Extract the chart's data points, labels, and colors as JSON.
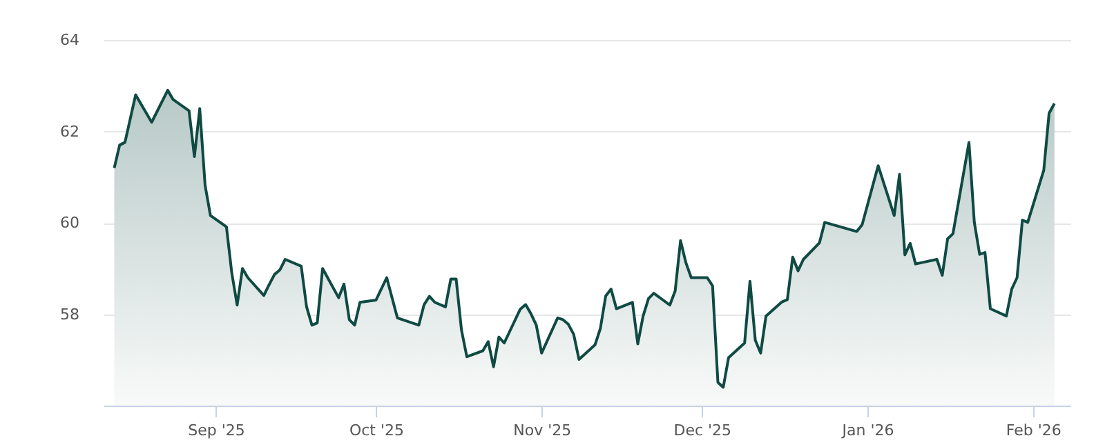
{
  "chart_data": {
    "type": "area",
    "grid": "y",
    "marker": "none",
    "line_style": "solid",
    "xlim": [
      "2025-08-11",
      "2026-02-08"
    ],
    "xticks": [
      {
        "value": "2025-09-01",
        "label": "Sep '25"
      },
      {
        "value": "2025-10-01",
        "label": "Oct '25"
      },
      {
        "value": "2025-11-01",
        "label": "Nov '25"
      },
      {
        "value": "2025-12-01",
        "label": "Dec '25"
      },
      {
        "value": "2026-01-01",
        "label": "Jan '26"
      },
      {
        "value": "2026-02-01",
        "label": "Feb '26"
      }
    ],
    "ylim": [
      56,
      64
    ],
    "yticks": [
      58,
      60,
      62,
      64
    ],
    "x": [
      "2025-08-13",
      "2025-08-14",
      "2025-08-15",
      "2025-08-17",
      "2025-08-20",
      "2025-08-23",
      "2025-08-24",
      "2025-08-27",
      "2025-08-28",
      "2025-08-29",
      "2025-08-30",
      "2025-08-31",
      "2025-09-03",
      "2025-09-04",
      "2025-09-05",
      "2025-09-06",
      "2025-09-07",
      "2025-09-10",
      "2025-09-11",
      "2025-09-12",
      "2025-09-13",
      "2025-09-14",
      "2025-09-17",
      "2025-09-18",
      "2025-09-19",
      "2025-09-20",
      "2025-09-21",
      "2025-09-24",
      "2025-09-25",
      "2025-09-26",
      "2025-09-27",
      "2025-09-28",
      "2025-10-01",
      "2025-10-03",
      "2025-10-05",
      "2025-10-09",
      "2025-10-10",
      "2025-10-11",
      "2025-10-12",
      "2025-10-14",
      "2025-10-15",
      "2025-10-16",
      "2025-10-17",
      "2025-10-18",
      "2025-10-21",
      "2025-10-22",
      "2025-10-23",
      "2025-10-24",
      "2025-10-25",
      "2025-10-28",
      "2025-10-29",
      "2025-10-30",
      "2025-10-31",
      "2025-11-01",
      "2025-11-04",
      "2025-11-05",
      "2025-11-06",
      "2025-11-07",
      "2025-11-08",
      "2025-11-11",
      "2025-11-12",
      "2025-11-13",
      "2025-11-14",
      "2025-11-15",
      "2025-11-18",
      "2025-11-19",
      "2025-11-20",
      "2025-11-21",
      "2025-11-22",
      "2025-11-25",
      "2025-11-26",
      "2025-11-27",
      "2025-11-28",
      "2025-11-29",
      "2025-12-02",
      "2025-12-03",
      "2025-12-04",
      "2025-12-05",
      "2025-12-06",
      "2025-12-09",
      "2025-12-10",
      "2025-12-11",
      "2025-12-12",
      "2025-12-13",
      "2025-12-16",
      "2025-12-17",
      "2025-12-18",
      "2025-12-19",
      "2025-12-20",
      "2025-12-23",
      "2025-12-24",
      "2025-12-30",
      "2025-12-31",
      "2026-01-03",
      "2026-01-06",
      "2026-01-07",
      "2026-01-08",
      "2026-01-09",
      "2026-01-10",
      "2026-01-14",
      "2026-01-15",
      "2026-01-16",
      "2026-01-17",
      "2026-01-20",
      "2026-01-21",
      "2026-01-22",
      "2026-01-23",
      "2026-01-24",
      "2026-01-27",
      "2026-01-28",
      "2026-01-29",
      "2026-01-30",
      "2026-01-31",
      "2026-02-03",
      "2026-02-04",
      "2026-02-05"
    ],
    "series": [
      {
        "color": "#0f4a43",
        "values": [
          61.2,
          61.7,
          61.76,
          62.8,
          62.2,
          62.9,
          62.7,
          62.45,
          61.45,
          62.5,
          60.82,
          60.16,
          59.91,
          58.9,
          58.2,
          59.0,
          58.8,
          58.41,
          58.65,
          58.87,
          58.97,
          59.2,
          59.05,
          58.16,
          57.76,
          57.81,
          59.0,
          58.36,
          58.66,
          57.88,
          57.76,
          58.26,
          58.31,
          58.8,
          57.92,
          57.76,
          58.21,
          58.39,
          58.26,
          58.16,
          58.77,
          58.77,
          57.65,
          57.07,
          57.2,
          57.4,
          56.85,
          57.5,
          57.37,
          58.11,
          58.21,
          58.01,
          57.76,
          57.15,
          57.92,
          57.88,
          57.78,
          57.56,
          57.01,
          57.33,
          57.69,
          58.4,
          58.55,
          58.12,
          58.26,
          57.35,
          57.96,
          58.34,
          58.46,
          58.2,
          58.51,
          59.61,
          59.13,
          58.8,
          58.8,
          58.62,
          56.51,
          56.4,
          57.05,
          57.37,
          58.72,
          57.43,
          57.15,
          57.96,
          58.27,
          58.32,
          59.25,
          58.95,
          59.2,
          59.56,
          60.01,
          59.81,
          59.96,
          61.25,
          60.16,
          61.06,
          59.3,
          59.55,
          59.1,
          59.2,
          58.85,
          59.65,
          59.76,
          61.76,
          60.01,
          59.31,
          59.35,
          58.12,
          57.96,
          58.55,
          58.8,
          60.06,
          60.01,
          61.15,
          62.4,
          62.61
        ]
      }
    ]
  }
}
